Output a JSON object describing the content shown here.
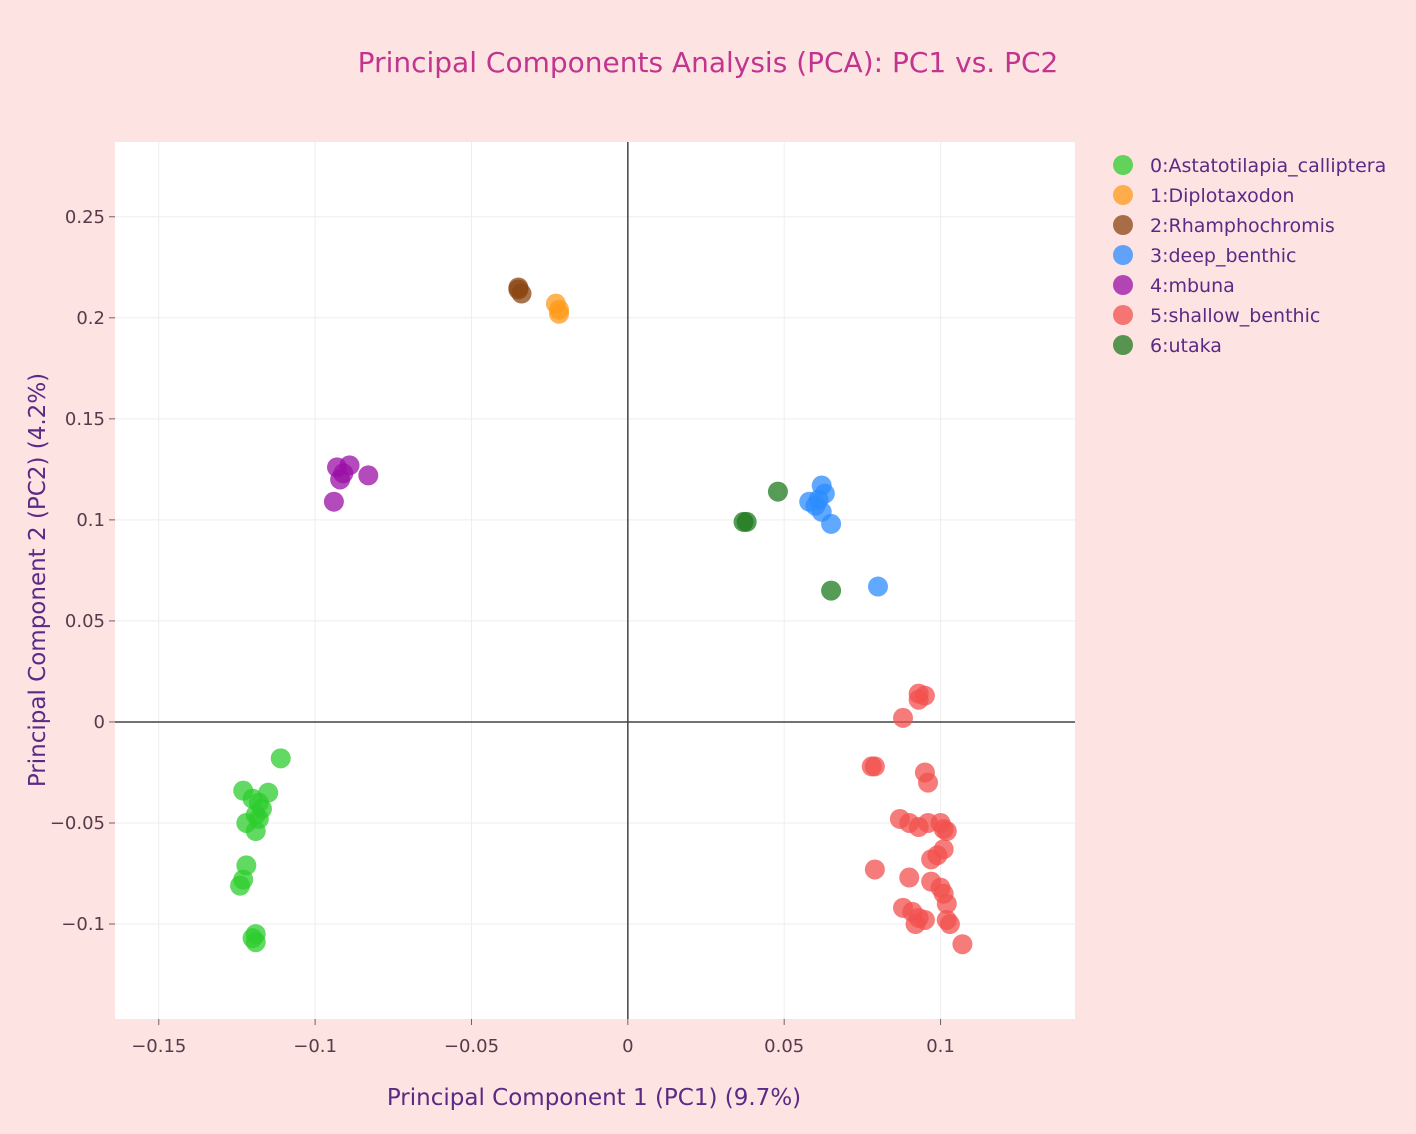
{
  "chart_data": {
    "type": "scatter",
    "title": "Principal Components Analysis (PCA): PC1 vs. PC2",
    "xlabel": "Principal Component 1 (PC1) (9.7%)",
    "ylabel": "Principal Component 2 (PC2) (4.2%)",
    "xlim": [
      -0.164,
      0.143
    ],
    "ylim": [
      -0.147,
      0.287
    ],
    "x_ticks": [
      -0.15,
      -0.1,
      -0.05,
      0,
      0.05,
      0.1
    ],
    "x_tick_labels": [
      "−0.15",
      "−0.1",
      "−0.05",
      "0",
      "0.05",
      "0.1"
    ],
    "y_ticks": [
      -0.1,
      -0.05,
      0,
      0.05,
      0.1,
      0.15,
      0.2,
      0.25
    ],
    "y_tick_labels": [
      "−0.1",
      "−0.05",
      "0",
      "0.05",
      "0.1",
      "0.15",
      "0.2",
      "0.25"
    ],
    "grid": true,
    "legend_position": "top-right, outside plot",
    "series": [
      {
        "name": "0:Astatotilapia_calliptera",
        "color": "#2ecc2e",
        "points": [
          [
            -0.111,
            -0.018
          ],
          [
            -0.123,
            -0.034
          ],
          [
            -0.12,
            -0.038
          ],
          [
            -0.115,
            -0.035
          ],
          [
            -0.118,
            -0.04
          ],
          [
            -0.117,
            -0.043
          ],
          [
            -0.119,
            -0.046
          ],
          [
            -0.118,
            -0.048
          ],
          [
            -0.122,
            -0.05
          ],
          [
            -0.119,
            -0.054
          ],
          [
            -0.122,
            -0.071
          ],
          [
            -0.123,
            -0.078
          ],
          [
            -0.124,
            -0.081
          ],
          [
            -0.119,
            -0.105
          ],
          [
            -0.12,
            -0.107
          ],
          [
            -0.119,
            -0.109
          ]
        ]
      },
      {
        "name": "1:Diplotaxodon",
        "color": "#ff9a1a",
        "points": [
          [
            -0.023,
            0.207
          ],
          [
            -0.022,
            0.204
          ],
          [
            -0.022,
            0.202
          ]
        ]
      },
      {
        "name": "2:Rhamphochromis",
        "color": "#8b4513",
        "points": [
          [
            -0.035,
            0.215
          ],
          [
            -0.034,
            0.212
          ],
          [
            -0.035,
            0.214
          ]
        ]
      },
      {
        "name": "3:deep_benthic",
        "color": "#2b8cff",
        "points": [
          [
            0.062,
            0.117
          ],
          [
            0.063,
            0.113
          ],
          [
            0.061,
            0.11
          ],
          [
            0.058,
            0.109
          ],
          [
            0.06,
            0.107
          ],
          [
            0.062,
            0.104
          ],
          [
            0.065,
            0.098
          ],
          [
            0.08,
            0.067
          ]
        ]
      },
      {
        "name": "4:mbuna",
        "color": "#990fa6",
        "points": [
          [
            -0.093,
            0.126
          ],
          [
            -0.089,
            0.127
          ],
          [
            -0.091,
            0.123
          ],
          [
            -0.092,
            0.12
          ],
          [
            -0.083,
            0.122
          ],
          [
            -0.094,
            0.109
          ]
        ]
      },
      {
        "name": "5:shallow_benthic",
        "color": "#f2504d",
        "points": [
          [
            0.093,
            0.014
          ],
          [
            0.095,
            0.013
          ],
          [
            0.093,
            0.011
          ],
          [
            0.088,
            0.002
          ],
          [
            0.078,
            -0.022
          ],
          [
            0.079,
            -0.022
          ],
          [
            0.095,
            -0.025
          ],
          [
            0.096,
            -0.03
          ],
          [
            0.087,
            -0.048
          ],
          [
            0.09,
            -0.05
          ],
          [
            0.093,
            -0.052
          ],
          [
            0.096,
            -0.05
          ],
          [
            0.1,
            -0.05
          ],
          [
            0.101,
            -0.053
          ],
          [
            0.102,
            -0.054
          ],
          [
            0.101,
            -0.063
          ],
          [
            0.099,
            -0.066
          ],
          [
            0.097,
            -0.068
          ],
          [
            0.079,
            -0.073
          ],
          [
            0.09,
            -0.077
          ],
          [
            0.097,
            -0.079
          ],
          [
            0.1,
            -0.082
          ],
          [
            0.101,
            -0.085
          ],
          [
            0.102,
            -0.09
          ],
          [
            0.088,
            -0.092
          ],
          [
            0.091,
            -0.094
          ],
          [
            0.093,
            -0.097
          ],
          [
            0.095,
            -0.098
          ],
          [
            0.092,
            -0.1
          ],
          [
            0.102,
            -0.098
          ],
          [
            0.103,
            -0.1
          ],
          [
            0.107,
            -0.11
          ]
        ]
      },
      {
        "name": "6:utaka",
        "color": "#1e7a1e",
        "points": [
          [
            0.048,
            0.114
          ],
          [
            0.038,
            0.099
          ],
          [
            0.037,
            0.099
          ],
          [
            0.065,
            0.065
          ]
        ]
      }
    ]
  }
}
